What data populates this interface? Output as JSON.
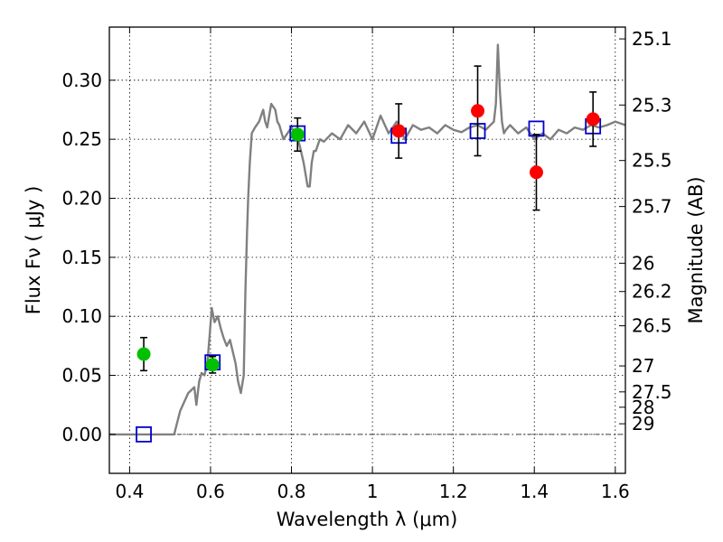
{
  "chart_data": {
    "type": "scatter",
    "xlabel": "Wavelength  λ (μm)",
    "ylabel": "Flux  Fν  ( μJy )",
    "y2label": "Magnitude (AB)",
    "xlim": [
      0.35,
      1.625
    ],
    "ylim": [
      -0.033,
      0.345
    ],
    "grid": true,
    "x_ticks": [
      {
        "value": 0.4,
        "label": "0.4"
      },
      {
        "value": 0.6,
        "label": "0.6"
      },
      {
        "value": 0.8,
        "label": "0.8"
      },
      {
        "value": 1.0,
        "label": "1"
      },
      {
        "value": 1.2,
        "label": "1.2"
      },
      {
        "value": 1.4,
        "label": "1.4"
      },
      {
        "value": 1.6,
        "label": "1.6"
      }
    ],
    "y_ticks": [
      {
        "value": 0.0,
        "label": "0.00"
      },
      {
        "value": 0.05,
        "label": "0.05"
      },
      {
        "value": 0.1,
        "label": "0.10"
      },
      {
        "value": 0.15,
        "label": "0.15"
      },
      {
        "value": 0.2,
        "label": "0.20"
      },
      {
        "value": 0.25,
        "label": "0.25"
      },
      {
        "value": 0.3,
        "label": "0.30"
      }
    ],
    "y2_ticks": [
      {
        "label": "25.1",
        "flux": 0.335
      },
      {
        "label": "25.3",
        "flux": 0.279
      },
      {
        "label": "25.5",
        "flux": 0.232
      },
      {
        "label": "25.7",
        "flux": 0.193
      },
      {
        "label": "26",
        "flux": 0.145
      },
      {
        "label": "26.2",
        "flux": 0.121
      },
      {
        "label": "26.5",
        "flux": 0.092
      },
      {
        "label": "27",
        "flux": 0.058
      },
      {
        "label": "27.5",
        "flux": 0.036
      },
      {
        "label": "28",
        "flux": 0.023
      },
      {
        "label": "29",
        "flux": 0.009
      }
    ],
    "series": [
      {
        "kind": "line",
        "color": "#808080",
        "x": [
          0.35,
          0.51,
          0.525,
          0.545,
          0.56,
          0.565,
          0.572,
          0.578,
          0.585,
          0.592,
          0.598,
          0.603,
          0.61,
          0.618,
          0.625,
          0.632,
          0.64,
          0.648,
          0.655,
          0.662,
          0.668,
          0.675,
          0.682,
          0.686,
          0.69,
          0.693,
          0.697,
          0.702,
          0.71,
          0.72,
          0.73,
          0.735,
          0.74,
          0.745,
          0.75,
          0.76,
          0.765,
          0.77,
          0.78,
          0.79,
          0.8,
          0.81,
          0.82,
          0.83,
          0.84,
          0.845,
          0.85,
          0.855,
          0.86,
          0.87,
          0.88,
          0.9,
          0.92,
          0.94,
          0.96,
          0.98,
          1.0,
          1.02,
          1.04,
          1.06,
          1.08,
          1.1,
          1.12,
          1.14,
          1.16,
          1.18,
          1.2,
          1.22,
          1.24,
          1.26,
          1.28,
          1.3,
          1.305,
          1.31,
          1.315,
          1.32,
          1.325,
          1.33,
          1.34,
          1.36,
          1.38,
          1.4,
          1.42,
          1.44,
          1.46,
          1.48,
          1.5,
          1.52,
          1.54,
          1.56,
          1.58,
          1.6,
          1.625
        ],
        "y": [
          0.0,
          0.0,
          0.02,
          0.035,
          0.04,
          0.025,
          0.045,
          0.052,
          0.05,
          0.06,
          0.085,
          0.107,
          0.095,
          0.1,
          0.09,
          0.082,
          0.075,
          0.08,
          0.07,
          0.06,
          0.045,
          0.035,
          0.05,
          0.12,
          0.17,
          0.2,
          0.23,
          0.255,
          0.26,
          0.265,
          0.275,
          0.265,
          0.26,
          0.27,
          0.28,
          0.275,
          0.265,
          0.262,
          0.25,
          0.255,
          0.26,
          0.255,
          0.245,
          0.23,
          0.21,
          0.21,
          0.23,
          0.24,
          0.24,
          0.25,
          0.248,
          0.255,
          0.25,
          0.262,
          0.255,
          0.265,
          0.25,
          0.27,
          0.255,
          0.265,
          0.25,
          0.262,
          0.258,
          0.26,
          0.255,
          0.262,
          0.258,
          0.256,
          0.26,
          0.262,
          0.258,
          0.265,
          0.28,
          0.33,
          0.29,
          0.265,
          0.255,
          0.258,
          0.262,
          0.255,
          0.26,
          0.25,
          0.255,
          0.25,
          0.258,
          0.255,
          0.26,
          0.258,
          0.262,
          0.26,
          0.262,
          0.265,
          0.262
        ]
      },
      {
        "kind": "squares",
        "color": "#0000cc",
        "points": [
          {
            "x": 0.435,
            "y": 0.0
          },
          {
            "x": 0.605,
            "y": 0.061
          },
          {
            "x": 0.815,
            "y": 0.255
          },
          {
            "x": 1.065,
            "y": 0.253
          },
          {
            "x": 1.26,
            "y": 0.257
          },
          {
            "x": 1.405,
            "y": 0.259
          },
          {
            "x": 1.545,
            "y": 0.261
          }
        ]
      },
      {
        "kind": "points",
        "color": "#00c000",
        "points": [
          {
            "x": 0.435,
            "y": 0.068,
            "err": 0.014
          },
          {
            "x": 0.605,
            "y": 0.059,
            "err": 0.007
          },
          {
            "x": 0.815,
            "y": 0.254,
            "err": 0.014
          }
        ]
      },
      {
        "kind": "points",
        "color": "#ff0000",
        "points": [
          {
            "x": 1.065,
            "y": 0.257,
            "err": 0.023
          },
          {
            "x": 1.26,
            "y": 0.274,
            "err": 0.038
          },
          {
            "x": 1.405,
            "y": 0.222,
            "err": 0.032
          },
          {
            "x": 1.545,
            "y": 0.267,
            "err": 0.023
          }
        ]
      }
    ]
  }
}
